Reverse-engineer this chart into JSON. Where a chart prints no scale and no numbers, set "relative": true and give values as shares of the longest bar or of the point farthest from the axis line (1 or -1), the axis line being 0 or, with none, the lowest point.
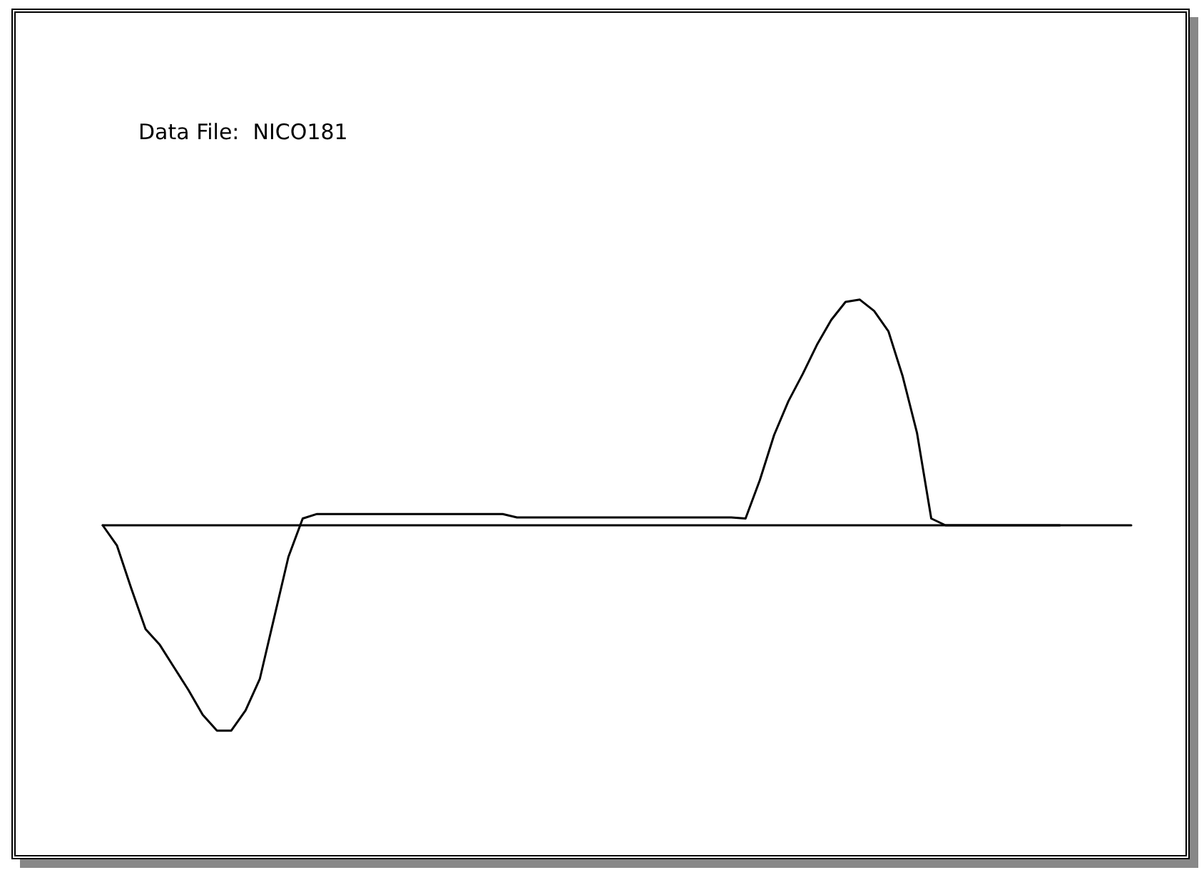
{
  "chart_data": {
    "type": "line",
    "title": "Data File:  NICO181",
    "relative": true,
    "marker": "none",
    "line_style": "solid",
    "categories": [
      null,
      null,
      null,
      null,
      null,
      null,
      null,
      null,
      null,
      null,
      null,
      null,
      null,
      null,
      null,
      null,
      null,
      null,
      null,
      null,
      null,
      null,
      null,
      null,
      null,
      null,
      null,
      null,
      null,
      null,
      null,
      null,
      null,
      null,
      null,
      null,
      null,
      null,
      null,
      null,
      null,
      null,
      null,
      null,
      null,
      null,
      null,
      null,
      null,
      null,
      null,
      null,
      null,
      null,
      null,
      null,
      null,
      null,
      null,
      null,
      null,
      null,
      null,
      null,
      null,
      null,
      null,
      null,
      null,
      null,
      null,
      null,
      null
    ],
    "series": [
      {
        "color": "#000000",
        "values": [
          0,
          -0.09,
          -0.28,
          -0.46,
          -0.53,
          -0.63,
          -0.73,
          -0.84,
          -0.91,
          -0.91,
          -0.82,
          -0.68,
          -0.41,
          -0.14,
          0.03,
          0.05,
          0.05,
          0.05,
          0.05,
          0.05,
          0.05,
          0.05,
          0.05,
          0.05,
          0.05,
          0.05,
          0.05,
          0.05,
          0.05,
          0.035,
          0.035,
          0.035,
          0.035,
          0.035,
          0.035,
          0.035,
          0.035,
          0.035,
          0.035,
          0.035,
          0.035,
          0.035,
          0.035,
          0.035,
          0.035,
          0.03,
          0.2,
          0.4,
          0.55,
          0.67,
          0.8,
          0.91,
          0.99,
          1,
          0.95,
          0.86,
          0.66,
          0.41,
          0.03,
          0,
          0,
          0,
          0,
          0,
          0,
          0,
          0,
          0,
          null,
          null,
          null,
          null,
          null
        ]
      }
    ]
  }
}
